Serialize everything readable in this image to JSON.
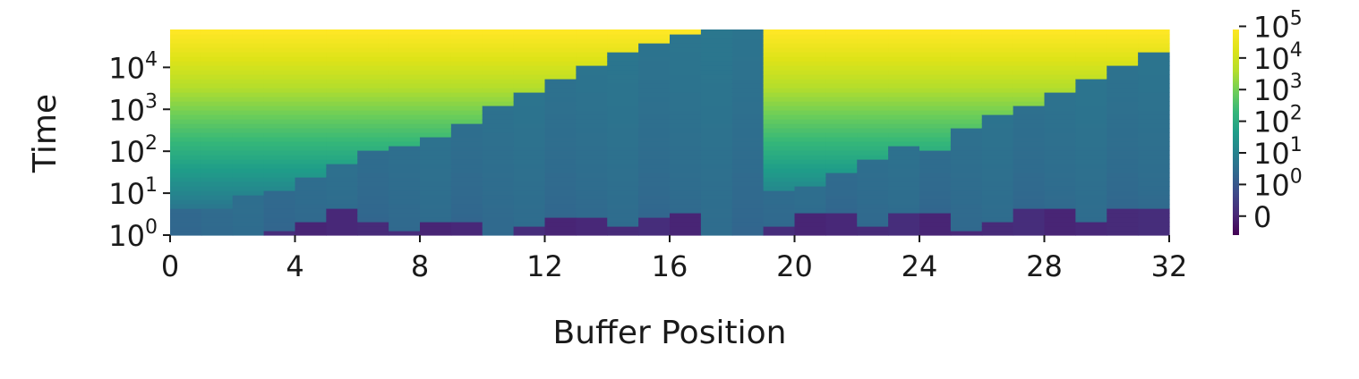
{
  "chart_data": {
    "type": "heatmap",
    "title": "",
    "xlabel": "Buffer Position",
    "ylabel": "Time",
    "x_range": [
      0,
      32
    ],
    "y_range": [
      1,
      80000
    ],
    "y_scale": "log",
    "x_ticks": [
      "0",
      "4",
      "8",
      "12",
      "16",
      "20",
      "24",
      "28",
      "32"
    ],
    "x_tick_values": [
      0,
      4,
      8,
      12,
      16,
      20,
      24,
      28,
      32
    ],
    "y_ticks": [
      {
        "base": "10",
        "exp": "0",
        "value": 1
      },
      {
        "base": "10",
        "exp": "1",
        "value": 10
      },
      {
        "base": "10",
        "exp": "2",
        "value": 100
      },
      {
        "base": "10",
        "exp": "3",
        "value": 1000
      },
      {
        "base": "10",
        "exp": "4",
        "value": 10000
      }
    ],
    "colormap": "viridis",
    "colorbar": {
      "scale": "symlog",
      "ticks": [
        {
          "base": "0",
          "exp": "",
          "value": 0
        },
        {
          "base": "10",
          "exp": "0",
          "value": 1
        },
        {
          "base": "10",
          "exp": "1",
          "value": 10
        },
        {
          "base": "10",
          "exp": "2",
          "value": 100
        },
        {
          "base": "10",
          "exp": "3",
          "value": 1000
        },
        {
          "base": "10",
          "exp": "4",
          "value": 10000
        },
        {
          "base": "10",
          "exp": "5",
          "value": 100000
        }
      ]
    },
    "grid": false,
    "legend": "none",
    "buffer_positions": [
      0,
      1,
      2,
      3,
      4,
      5,
      6,
      7,
      8,
      9,
      10,
      11,
      12,
      13,
      14,
      15,
      16,
      17,
      18,
      19,
      20,
      21,
      22,
      23,
      24,
      25,
      26,
      27,
      28,
      29,
      30,
      31
    ],
    "first_write_time": [
      0.1,
      0.1,
      1.05,
      1.3,
      2.0,
      4.5,
      2.1,
      1.4,
      2.2,
      2.3,
      1.1,
      1.5,
      2.5,
      2.7,
      1.6,
      3.0,
      3.2,
      0.1,
      1.1,
      1.7,
      3.3,
      3.4,
      1.8,
      3.6,
      3.8,
      1.3,
      1.9,
      4.0,
      4.2,
      2.0,
      4.4,
      4.6
    ],
    "last_write_time": [
      4.5,
      4.5,
      10,
      12,
      25,
      50,
      100,
      150,
      250,
      500,
      1200,
      2500,
      5000,
      12000,
      22000,
      35000,
      60000,
      90000,
      90000,
      12,
      15,
      30,
      60,
      150,
      100,
      400,
      700,
      1200,
      2500,
      5000,
      10000,
      25000
    ]
  }
}
